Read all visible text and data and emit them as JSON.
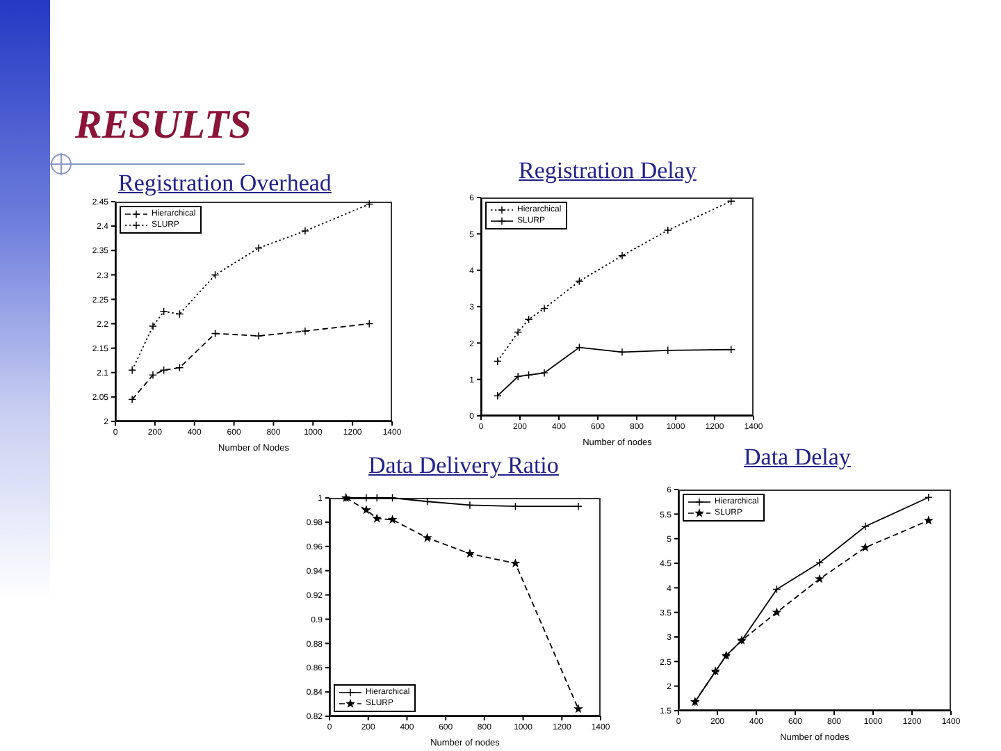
{
  "chart_data": [
    {
      "type": "line",
      "title": "Registration Overhead",
      "annotations": [
        "RESULTS"
      ],
      "xlabel": "Number of Nodes",
      "x": [
        85,
        190,
        245,
        325,
        505,
        725,
        960,
        1285
      ],
      "series": [
        {
          "name": "Hierarchical",
          "color": "#000000",
          "line_style": "dashed",
          "marker": "cross",
          "values": [
            2.045,
            2.095,
            2.105,
            2.11,
            2.18,
            2.175,
            2.185,
            2.2
          ]
        },
        {
          "name": "SLURP",
          "color": "#000000",
          "line_style": "dotted",
          "marker": "cross",
          "values": [
            2.105,
            2.195,
            2.225,
            2.22,
            2.3,
            2.355,
            2.39,
            2.445
          ]
        }
      ],
      "xlim": [
        0,
        1400
      ],
      "xticks": [
        0,
        200,
        400,
        600,
        800,
        1000,
        1200,
        1400
      ],
      "ylim": [
        2,
        2.45
      ],
      "yticks": [
        2,
        2.05,
        2.1,
        2.15,
        2.2,
        2.25,
        2.3,
        2.35,
        2.4,
        2.45
      ],
      "legend": "top left"
    },
    {
      "type": "line",
      "title": "Registration Delay",
      "xlabel": "Number of nodes",
      "x": [
        85,
        190,
        245,
        325,
        505,
        725,
        960,
        1285
      ],
      "series": [
        {
          "name": "Hierarchical",
          "color": "#000000",
          "line_style": "dotted",
          "marker": "cross",
          "values": [
            1.5,
            2.3,
            2.65,
            2.95,
            3.7,
            4.4,
            5.1,
            5.9
          ]
        },
        {
          "name": "SLURP",
          "color": "#000000",
          "line_style": "solid",
          "marker": "cross",
          "values": [
            0.55,
            1.08,
            1.12,
            1.18,
            1.88,
            1.75,
            1.8,
            1.82
          ]
        }
      ],
      "xlim": [
        0,
        1400
      ],
      "xticks": [
        0,
        200,
        400,
        600,
        800,
        1000,
        1200,
        1400
      ],
      "ylim": [
        0,
        6
      ],
      "yticks": [
        0,
        1,
        2,
        3,
        4,
        5,
        6
      ],
      "legend": "top left"
    },
    {
      "type": "line",
      "title": "Data Delivery Ratio",
      "xlabel": "Number of nodes",
      "x": [
        85,
        190,
        245,
        325,
        505,
        725,
        960,
        1285
      ],
      "series": [
        {
          "name": "Hierarchical",
          "color": "#000000",
          "line_style": "solid",
          "marker": "cross",
          "values": [
            1,
            1,
            1,
            1,
            0.997,
            0.994,
            0.993,
            0.993
          ]
        },
        {
          "name": "SLURP",
          "color": "#000000",
          "line_style": "dashed",
          "marker": "star",
          "values": [
            1,
            0.99,
            0.983,
            0.982,
            0.967,
            0.954,
            0.946,
            0.826
          ]
        }
      ],
      "xlim": [
        0,
        1400
      ],
      "xticks": [
        0,
        200,
        400,
        600,
        800,
        1000,
        1200,
        1400
      ],
      "ylim": [
        0.82,
        1
      ],
      "yticks": [
        0.82,
        0.84,
        0.86,
        0.88,
        0.9,
        0.92,
        0.94,
        0.96,
        0.98,
        1
      ],
      "legend": "bottom left"
    },
    {
      "type": "line",
      "title": "Data Delay",
      "xlabel": "Number of nodes",
      "x": [
        85,
        190,
        245,
        325,
        505,
        725,
        960,
        1285
      ],
      "series": [
        {
          "name": "Hierarchical",
          "color": "#000000",
          "line_style": "solid",
          "marker": "cross",
          "values": [
            1.68,
            2.3,
            2.62,
            2.93,
            3.97,
            4.51,
            5.25,
            5.84
          ]
        },
        {
          "name": "SLURP",
          "color": "#000000",
          "line_style": "dashed",
          "marker": "star",
          "values": [
            1.68,
            2.3,
            2.62,
            2.93,
            3.5,
            4.18,
            4.82,
            5.37
          ]
        }
      ],
      "xlim": [
        0,
        1400
      ],
      "xticks": [
        0,
        200,
        400,
        600,
        800,
        1000,
        1200,
        1400
      ],
      "ylim": [
        1.5,
        6
      ],
      "yticks": [
        1.5,
        2,
        2.5,
        3,
        3.5,
        4,
        4.5,
        5,
        5.5,
        6
      ],
      "legend": "top left"
    }
  ]
}
